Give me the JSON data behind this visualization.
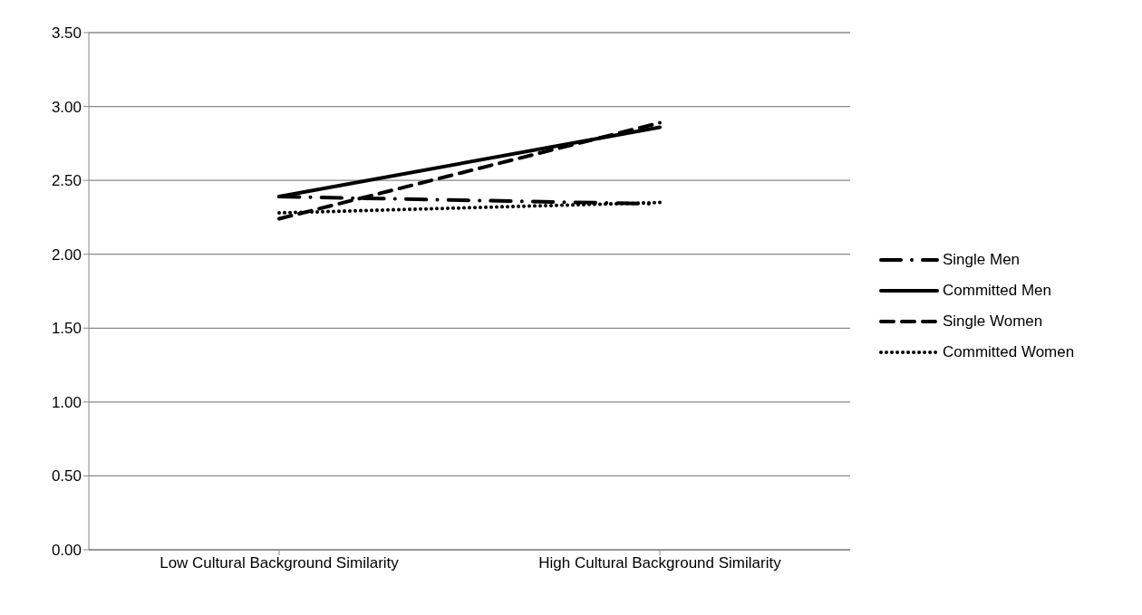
{
  "chart_data": {
    "type": "line",
    "categories": [
      "Low Cultural Background Similarity",
      "High Cultural Background Similarity"
    ],
    "series": [
      {
        "name": "Single Men",
        "color": "#000000",
        "values": [
          2.39,
          2.34
        ],
        "line_style": "dashdot"
      },
      {
        "name": "Committed Men",
        "color": "#000000",
        "values": [
          2.39,
          2.86
        ],
        "line_style": "solid"
      },
      {
        "name": "Single Women",
        "color": "#000000",
        "values": [
          2.24,
          2.89
        ],
        "line_style": "dashed"
      },
      {
        "name": "Committed Women",
        "color": "#000000",
        "values": [
          2.28,
          2.35
        ],
        "line_style": "dotted"
      }
    ],
    "ylim": [
      0,
      3.5
    ],
    "yticks": [
      {
        "value": 0,
        "label": "0.00"
      },
      {
        "value": 0.5,
        "label": "0.50"
      },
      {
        "value": 1,
        "label": "1.00"
      },
      {
        "value": 1.5,
        "label": "1.50"
      },
      {
        "value": 2,
        "label": "2.00"
      },
      {
        "value": 2.5,
        "label": "2.50"
      },
      {
        "value": 3,
        "label": "3.00"
      },
      {
        "value": 3.5,
        "label": "3.50"
      }
    ],
    "grid": "y",
    "legend": "right",
    "marker": "none"
  }
}
